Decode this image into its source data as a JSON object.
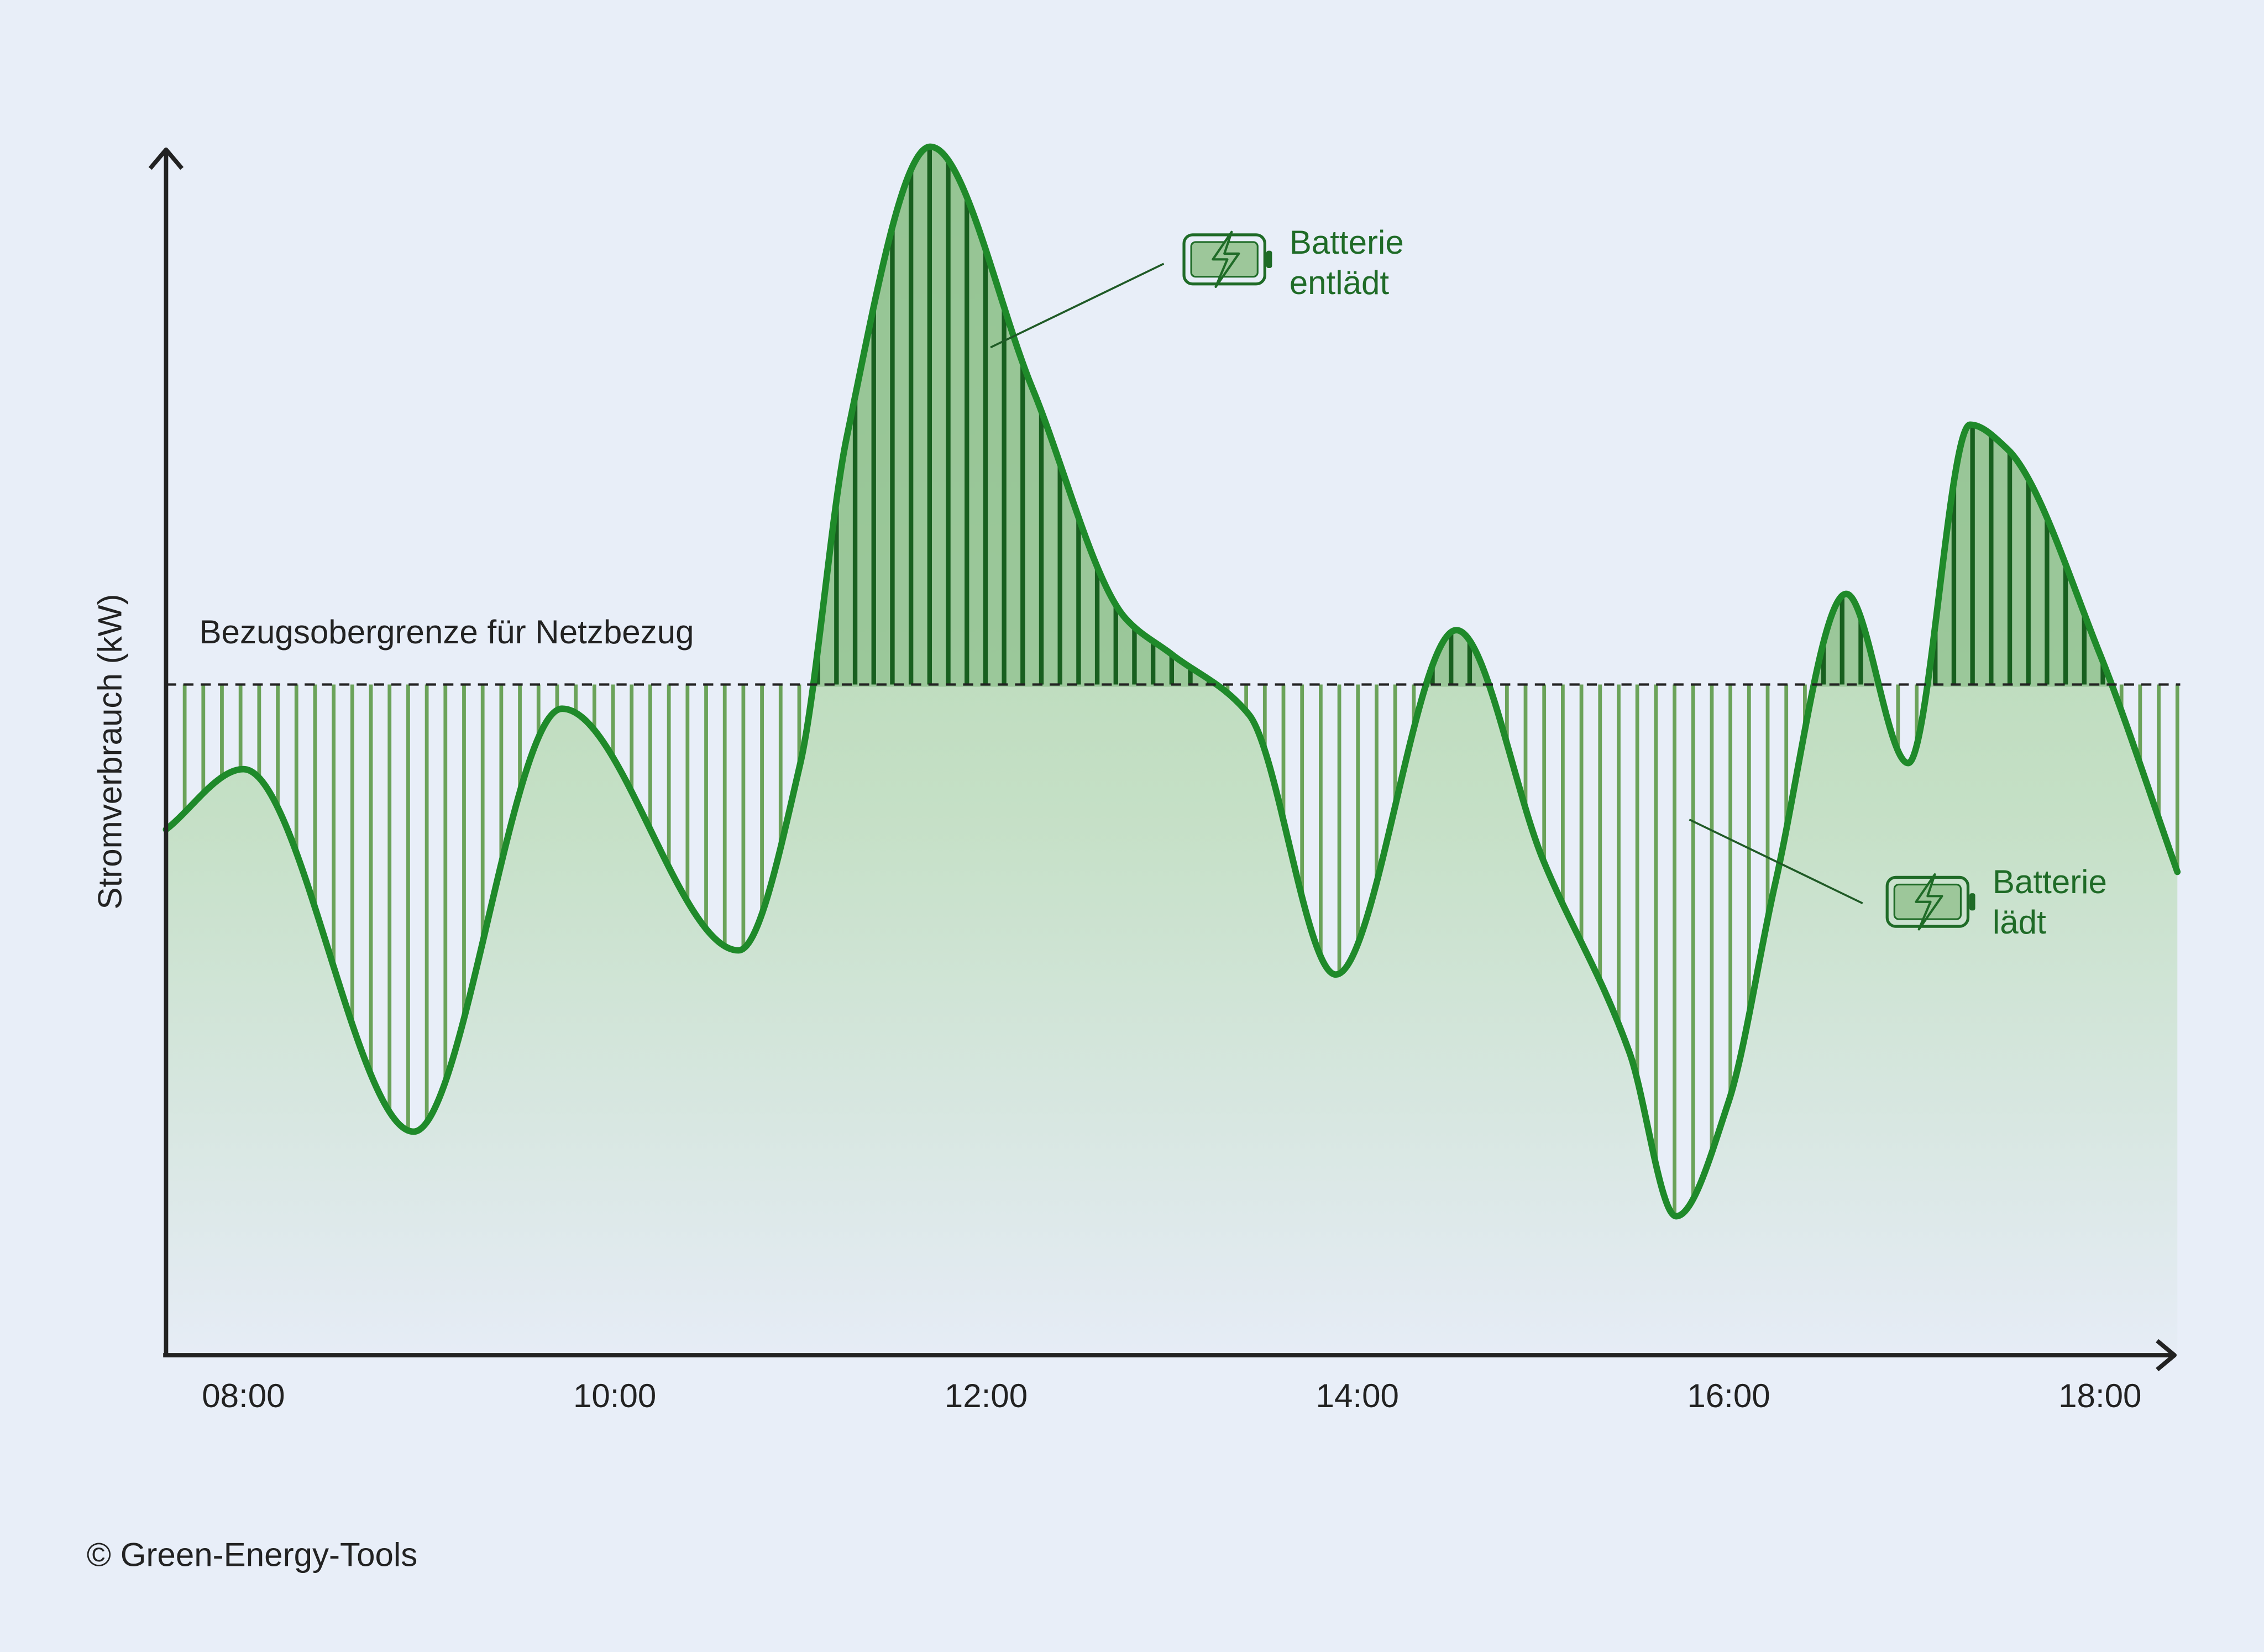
{
  "colors": {
    "background": "#e8eef8",
    "line": "#1f8a2a",
    "hatch_discharge": "#185f1f",
    "hatch_charge": "#6ba35a",
    "fill_top": "#aad1a6",
    "fill_bottom": "#e6ecf6",
    "axis": "#222222",
    "annotation_text": "#1f6b27",
    "text": "#222222"
  },
  "chart_data": {
    "type": "area",
    "xlabel": "",
    "ylabel": "Stromverbrauch (kW)",
    "xlim": [
      "07:35",
      "18:25"
    ],
    "ylim": [
      0,
      100
    ],
    "y_axis_unlabeled": true,
    "grid": false,
    "legend": "none",
    "x_ticks": [
      "08:00",
      "10:00",
      "12:00",
      "14:00",
      "16:00",
      "18:00"
    ],
    "threshold": {
      "label": "Bezugsobergrenze für Netzbezug",
      "value": 55.5,
      "style": "dashed"
    },
    "series": [
      {
        "x": [
          "07:35",
          "08:00",
          "08:55",
          "09:43",
          "10:40",
          "11:00",
          "11:15",
          "11:42",
          "12:15",
          "12:45",
          "13:00",
          "13:25",
          "13:53",
          "14:32",
          "15:00",
          "15:28",
          "15:43",
          "16:00",
          "16:15",
          "16:38",
          "16:58",
          "17:18",
          "17:30",
          "18:00",
          "18:25"
        ],
        "values": [
          43.5,
          48.5,
          18.5,
          53.5,
          33.5,
          49,
          76,
          100,
          80,
          61,
          58,
          53,
          31.5,
          60,
          41,
          25,
          11.5,
          21,
          39,
          63,
          49,
          77,
          75,
          58,
          40
        ]
      }
    ],
    "annotations": [
      {
        "text_lines": [
          "Batterie",
          "entlädt"
        ],
        "region": "above threshold",
        "icon": "battery-charging-icon"
      },
      {
        "text_lines": [
          "Batterie",
          "lädt"
        ],
        "region": "below threshold",
        "icon": "battery-charging-icon"
      }
    ]
  },
  "footer": {
    "copyright": "© Green-Energy-Tools"
  }
}
